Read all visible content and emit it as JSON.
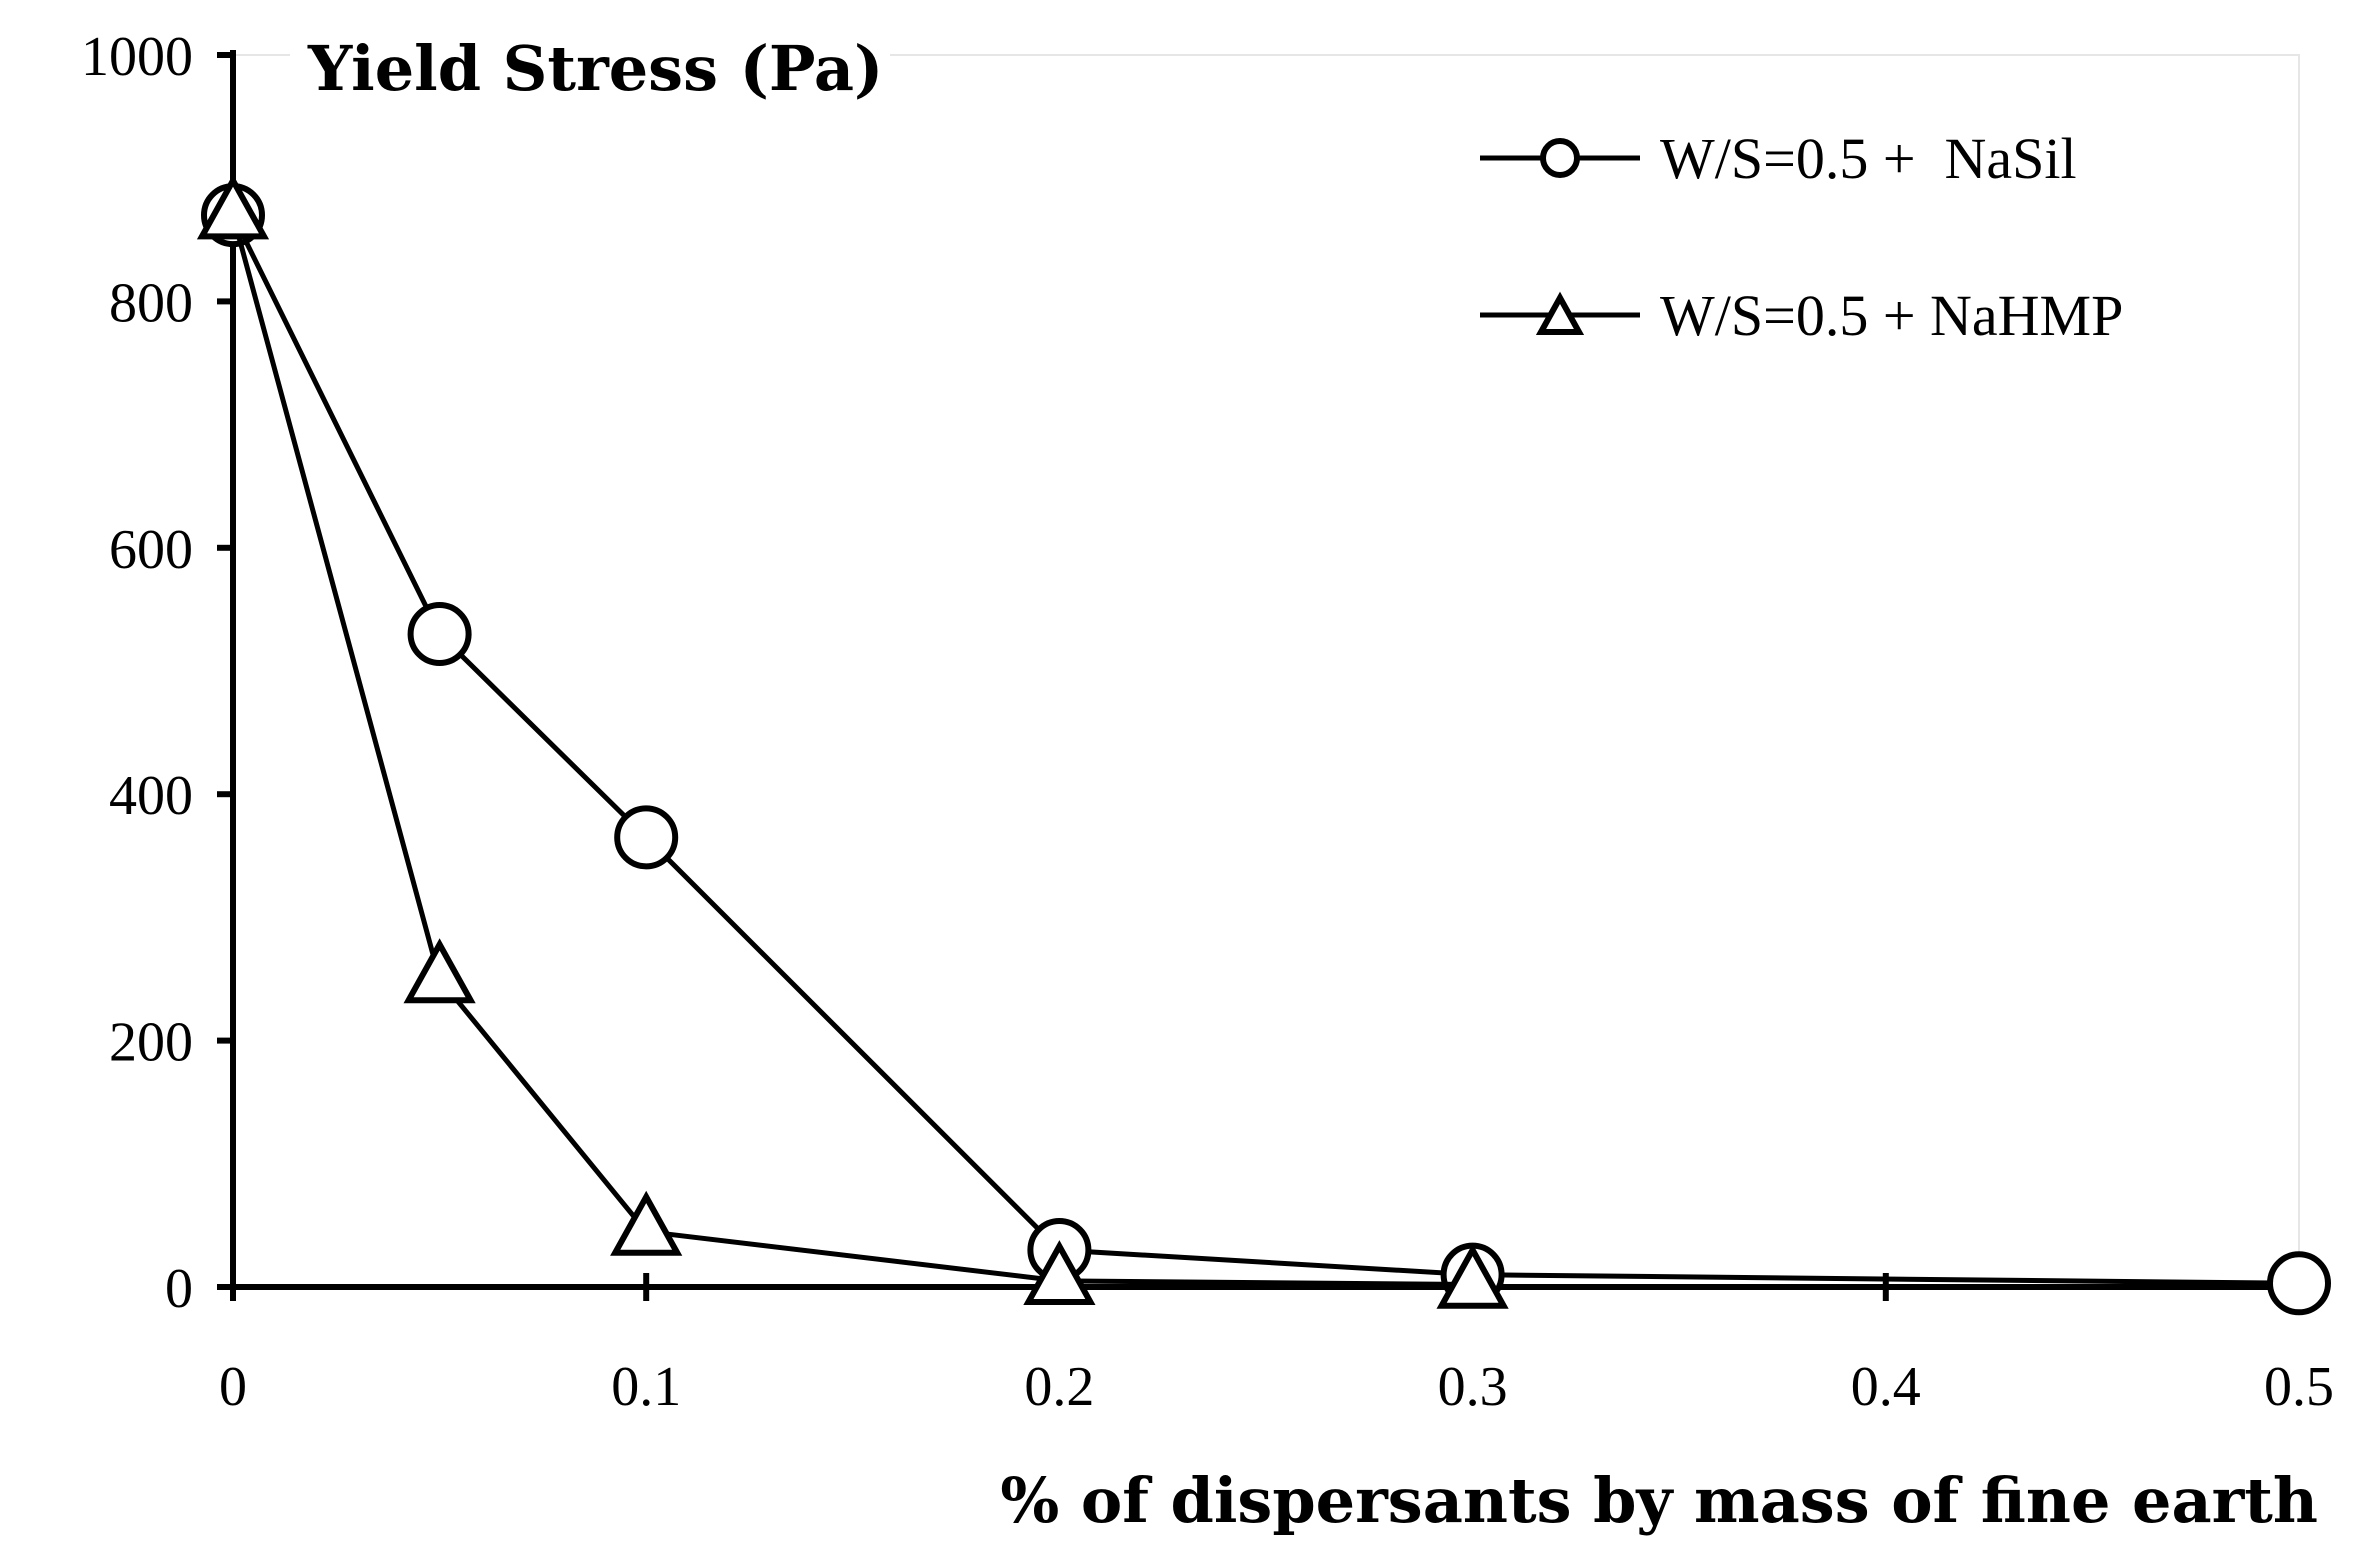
{
  "chart_data": {
    "type": "line",
    "ylabel": "Yield Stress (Pa)",
    "xlabel": "% of dispersants by mass of fine earth",
    "xlim": [
      0,
      0.5
    ],
    "ylim": [
      0,
      1000
    ],
    "x_ticks": [
      0,
      0.1,
      0.2,
      0.3,
      0.4,
      0.5
    ],
    "x_tick_labels": [
      "0",
      "0.1",
      "0.2",
      "0.3",
      "0.4",
      "0.5"
    ],
    "y_ticks": [
      0,
      200,
      400,
      600,
      800,
      1000
    ],
    "y_tick_labels": [
      "0",
      "200",
      "400",
      "600",
      "800",
      "1000"
    ],
    "grid": false,
    "legend_position": "top-right",
    "series": [
      {
        "name": "W/S=0.5 +  NaSil",
        "marker": "circle",
        "x": [
          0,
          0.05,
          0.1,
          0.2,
          0.3,
          0.5
        ],
        "values": [
          870,
          530,
          365,
          30,
          10,
          3
        ]
      },
      {
        "name": "W/S=0.5 + NaHMP",
        "marker": "triangle",
        "x": [
          0,
          0.05,
          0.1,
          0.2,
          0.3
        ],
        "values": [
          870,
          250,
          45,
          5,
          2
        ]
      }
    ]
  }
}
